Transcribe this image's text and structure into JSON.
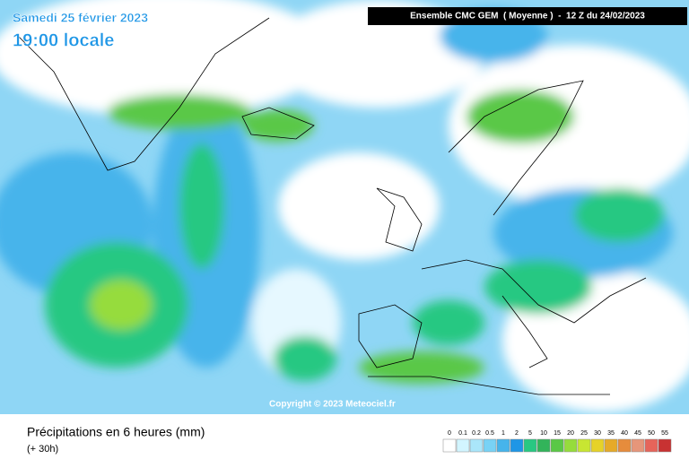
{
  "header": {
    "date": "Samedi 25 février 2023",
    "time": "19:00 locale",
    "model": "Ensemble CMC GEM  ( Moyenne )  -  12 Z du 24/02/2023"
  },
  "copyright": "Copyright © 2023 Meteociel.fr",
  "footer": {
    "title": "Précipitations en 6 heures (mm)",
    "lead": "(+ 30h)"
  },
  "legend": {
    "ticks": [
      0,
      0.1,
      0.2,
      0.5,
      1,
      2,
      5,
      10,
      15,
      20,
      25,
      30,
      35,
      40,
      45,
      50,
      55
    ],
    "colors": [
      "#ffffff",
      "#d2f5ff",
      "#aae6fa",
      "#78d2f5",
      "#46b4eb",
      "#1e96e6",
      "#28c882",
      "#32b45a",
      "#5ac846",
      "#96dc3c",
      "#c8e632",
      "#e6d228",
      "#e6aa28",
      "#e68c3c",
      "#e6967a",
      "#e6645a",
      "#c83232"
    ]
  }
}
